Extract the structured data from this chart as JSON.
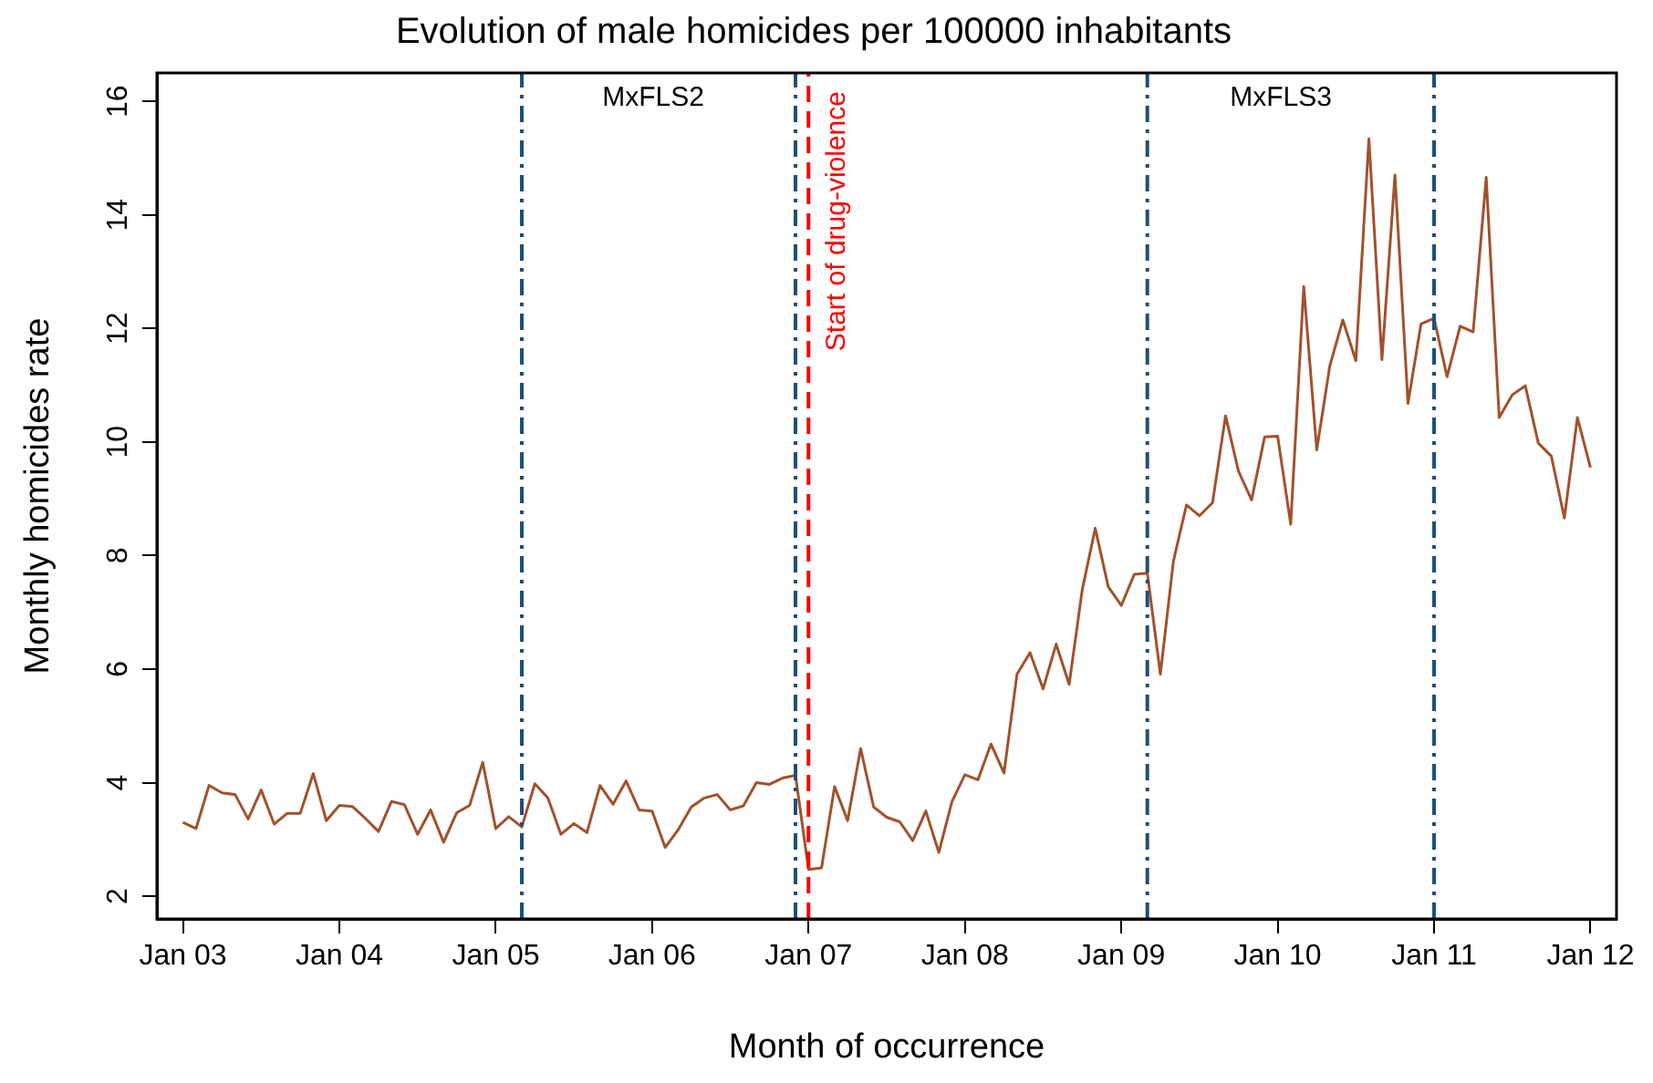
{
  "chart_data": {
    "type": "line",
    "title": "Evolution of male homicides per 100000 inhabitants",
    "xlabel": "Month of occurrence",
    "ylabel": "Monthly homicides rate",
    "x": [
      "2003-01",
      "2003-02",
      "2003-03",
      "2003-04",
      "2003-05",
      "2003-06",
      "2003-07",
      "2003-08",
      "2003-09",
      "2003-10",
      "2003-11",
      "2003-12",
      "2004-01",
      "2004-02",
      "2004-03",
      "2004-04",
      "2004-05",
      "2004-06",
      "2004-07",
      "2004-08",
      "2004-09",
      "2004-10",
      "2004-11",
      "2004-12",
      "2005-01",
      "2005-02",
      "2005-03",
      "2005-04",
      "2005-05",
      "2005-06",
      "2005-07",
      "2005-08",
      "2005-09",
      "2005-10",
      "2005-11",
      "2005-12",
      "2006-01",
      "2006-02",
      "2006-03",
      "2006-04",
      "2006-05",
      "2006-06",
      "2006-07",
      "2006-08",
      "2006-09",
      "2006-10",
      "2006-11",
      "2006-12",
      "2007-01",
      "2007-02",
      "2007-03",
      "2007-04",
      "2007-05",
      "2007-06",
      "2007-07",
      "2007-08",
      "2007-09",
      "2007-10",
      "2007-11",
      "2007-12",
      "2008-01",
      "2008-02",
      "2008-03",
      "2008-04",
      "2008-05",
      "2008-06",
      "2008-07",
      "2008-08",
      "2008-09",
      "2008-10",
      "2008-11",
      "2008-12",
      "2009-01",
      "2009-02",
      "2009-03",
      "2009-04",
      "2009-05",
      "2009-06",
      "2009-07",
      "2009-08",
      "2009-09",
      "2009-10",
      "2009-11",
      "2009-12",
      "2010-01",
      "2010-02",
      "2010-03",
      "2010-04",
      "2010-05",
      "2010-06",
      "2010-07",
      "2010-08",
      "2010-09",
      "2010-10",
      "2010-11",
      "2010-12",
      "2011-01",
      "2011-02",
      "2011-03",
      "2011-04",
      "2011-05",
      "2011-06",
      "2011-07",
      "2011-08",
      "2011-09",
      "2011-10",
      "2011-11",
      "2011-12",
      "2012-01"
    ],
    "series": [
      {
        "color": "#a0522d",
        "values": [
          3.3,
          3.19,
          3.95,
          3.82,
          3.79,
          3.36,
          3.87,
          3.27,
          3.46,
          3.46,
          4.16,
          3.33,
          3.6,
          3.58,
          3.37,
          3.14,
          3.67,
          3.61,
          3.09,
          3.52,
          2.95,
          3.47,
          3.6,
          4.36,
          3.19,
          3.4,
          3.22,
          3.98,
          3.73,
          3.09,
          3.28,
          3.12,
          3.95,
          3.62,
          4.03,
          3.52,
          3.5,
          2.86,
          3.17,
          3.57,
          3.73,
          3.79,
          3.52,
          3.59,
          4.0,
          3.97,
          4.08,
          4.13,
          2.47,
          2.5,
          3.93,
          3.33,
          4.6,
          3.57,
          3.39,
          3.31,
          2.98,
          3.5,
          2.77,
          3.66,
          4.14,
          4.05,
          4.68,
          4.17,
          5.91,
          6.29,
          5.65,
          6.44,
          5.73,
          7.39,
          8.48,
          7.45,
          7.12,
          7.67,
          7.69,
          5.91,
          7.9,
          8.89,
          8.7,
          8.93,
          10.46,
          9.48,
          8.98,
          10.09,
          10.1,
          8.55,
          12.74,
          9.86,
          11.34,
          12.15,
          11.43,
          15.34,
          11.45,
          14.7,
          10.68,
          12.08,
          12.18,
          11.15,
          12.04,
          11.94,
          14.66,
          10.43,
          10.83,
          10.99,
          9.98,
          9.75,
          8.66,
          10.43,
          9.55
        ]
      }
    ],
    "xlim": [
      "2002-11",
      "2012-03"
    ],
    "xticks": [
      {
        "value": "2003-01",
        "label": "Jan 03"
      },
      {
        "value": "2004-01",
        "label": "Jan 04"
      },
      {
        "value": "2005-01",
        "label": "Jan 05"
      },
      {
        "value": "2006-01",
        "label": "Jan 06"
      },
      {
        "value": "2007-01",
        "label": "Jan 07"
      },
      {
        "value": "2008-01",
        "label": "Jan 08"
      },
      {
        "value": "2009-01",
        "label": "Jan 09"
      },
      {
        "value": "2010-01",
        "label": "Jan 10"
      },
      {
        "value": "2011-01",
        "label": "Jan 11"
      },
      {
        "value": "2012-01",
        "label": "Jan 12"
      }
    ],
    "ylim": [
      1.6,
      16.5
    ],
    "yticks": [
      2,
      4,
      6,
      8,
      10,
      12,
      14,
      16
    ],
    "ref_lines": [
      {
        "axis": "x",
        "value": "2005-03",
        "color": "#1f4e79",
        "line_style": "dashdot"
      },
      {
        "axis": "x",
        "value": "2006-12",
        "color": "#1f4e79",
        "line_style": "dashdot"
      },
      {
        "axis": "x",
        "value": "2007-01",
        "label": "Start of drug-violence",
        "color": "#ff0000",
        "line_style": "dashed"
      },
      {
        "axis": "x",
        "value": "2009-03",
        "color": "#1f4e79",
        "line_style": "dashdot"
      },
      {
        "axis": "x",
        "value": "2011-01",
        "color": "#1f4e79",
        "line_style": "dashdot"
      }
    ],
    "annotations": [
      "MxFLS2",
      "MxFLS3"
    ],
    "grid": false,
    "legend": false,
    "marker": "none",
    "line_style": "solid"
  }
}
